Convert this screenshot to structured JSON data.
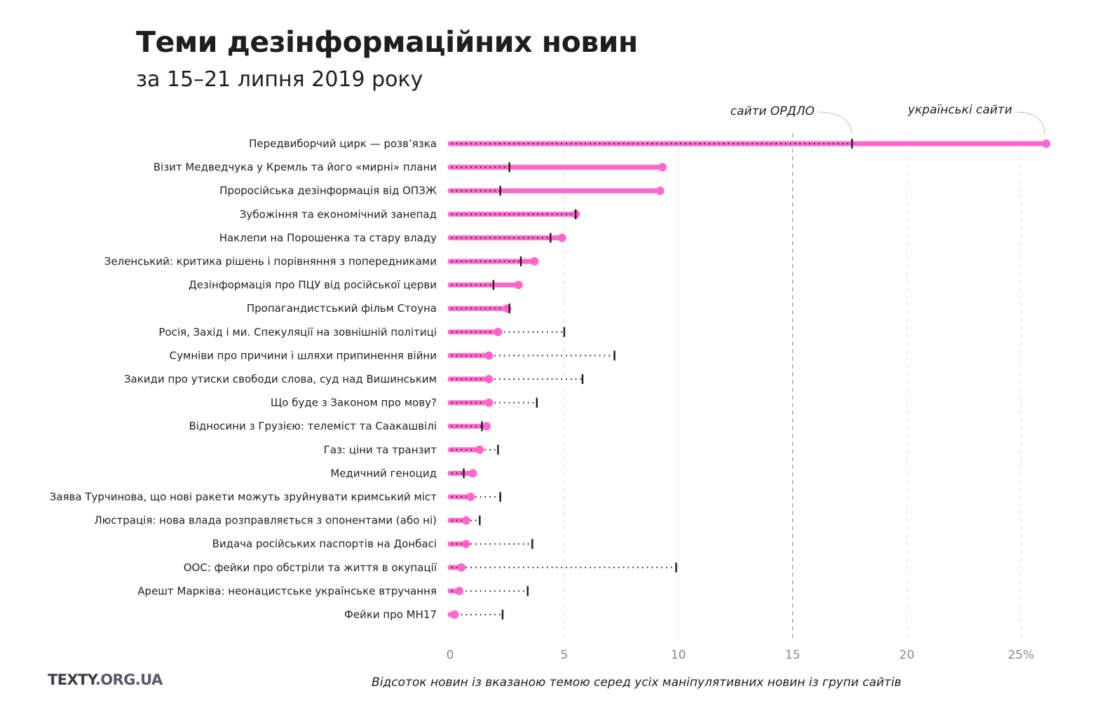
{
  "header": {
    "title": "Теми дезінформаційних новин",
    "subtitle": "за 15–21 липня 2019 року"
  },
  "footer": {
    "brand_main": "TEXTY",
    "brand_rest": ".ORG.UA"
  },
  "colors": {
    "ukrainian": "#ff66cc",
    "ordlo": "#1a1a1a",
    "grid": "#dddddd",
    "grid_strong": "#888888"
  },
  "chart_data": {
    "type": "dumbbell",
    "title": "Теми дезінформаційних новин",
    "subtitle": "за 15–21 липня 2019 року",
    "xlabel": "Відсоток новин із вказаною темою серед усіх маніпулятивних новин із групи сайтів",
    "ylabel": "",
    "xlim": [
      0,
      26.5
    ],
    "xticks": [
      0,
      5,
      10,
      15,
      20,
      25
    ],
    "xtick_labels": [
      "0",
      "5",
      "10",
      "15",
      "20",
      "25%"
    ],
    "grid": true,
    "series": [
      {
        "name": "українські сайти",
        "marker": "pink-dot-solid-line"
      },
      {
        "name": "сайти ОРДЛО",
        "marker": "black-tick-dotted-line"
      }
    ],
    "annotations": [
      {
        "text": "сайти ОРДЛО",
        "points_to": "ordlo value of first row"
      },
      {
        "text": "українські сайти",
        "points_to": "ukrainian value of first row"
      }
    ],
    "categories": [
      "Передвиборчий цирк — розв’язка",
      "Візит Медведчука у Кремль та його «мирні» плани",
      "Проросійська дезінформація від ОПЗЖ",
      "Зубожіння та економічний занепад",
      "Наклепи на Порошенка та стару владу",
      "Зеленський: критика рішень і порівняння з попередниками",
      "Дезінформація про ПЦУ від російської церви",
      "Пропагандистський фільм Стоуна",
      "Росія, Захід і ми. Спекуляції на зовнішній політиці",
      "Сумніви про причини і шляхи припинення війни",
      "Закиди про утиски свободи слова, суд над Вишинським",
      "Що буде з Законом про мову?",
      "Відносини з Грузією: телеміст та Саакашвілі",
      "Газ: ціни та транзит",
      "Медичний геноцид",
      "Заява Турчинова, що нові ракети можуть зруйнувати кримський міст",
      "Люстрація: нова влада розправляється з опонентами (або ні)",
      "Видача російських паспортів на Донбасі",
      "ООС: фейки про обстріли та життя в окупації",
      "Арешт Марківа: неонацистське українське втручання",
      "Фейки про МН17"
    ],
    "ukrainian": [
      26.1,
      9.3,
      9.2,
      5.5,
      4.9,
      3.7,
      3.0,
      2.5,
      2.1,
      1.7,
      1.7,
      1.7,
      1.6,
      1.3,
      1.0,
      0.9,
      0.7,
      0.7,
      0.5,
      0.4,
      0.2
    ],
    "ordlo": [
      17.6,
      2.6,
      2.2,
      5.5,
      4.4,
      3.1,
      1.9,
      2.6,
      5.0,
      7.2,
      5.8,
      3.8,
      1.4,
      2.1,
      0.6,
      2.2,
      1.3,
      3.6,
      9.9,
      3.4,
      2.3
    ]
  }
}
